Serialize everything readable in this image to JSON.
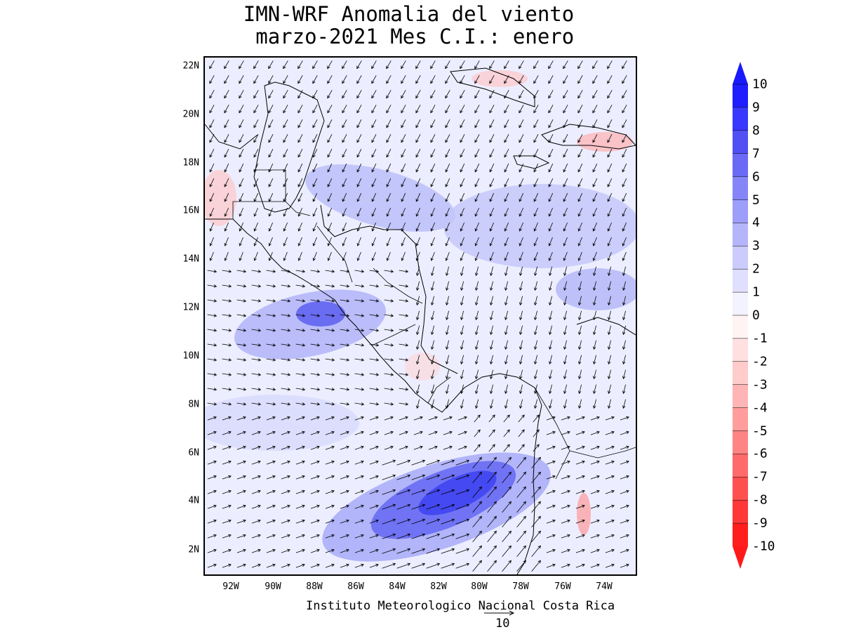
{
  "title": {
    "line1": "IMN-WRF Anomalia del viento",
    "line2": " marzo-2021 Mes C.I.: enero"
  },
  "credit": "Instituto Meteorologico Nacional Costa Rica",
  "reference_vector": {
    "label": "10",
    "magnitude": 10
  },
  "colors": {
    "negative_extreme": "#ff1a1a",
    "positive_extreme": "#1a1aff",
    "neutral": "#f2f2ff"
  },
  "map": {
    "lon_range": [
      -93.3,
      -72.3
    ],
    "lat_range": [
      1.0,
      22.5
    ],
    "lat_ticks": [
      "2N",
      "4N",
      "6N",
      "8N",
      "10N",
      "12N",
      "14N",
      "16N",
      "18N",
      "20N",
      "22N"
    ],
    "lon_ticks": [
      "92W",
      "90W",
      "88W",
      "86W",
      "84W",
      "82W",
      "80W",
      "78W",
      "76W",
      "74W"
    ],
    "variable": "wind speed anomaly (shaded) with wind anomaly vectors"
  },
  "colorbar": {
    "labels": [
      "10",
      "9",
      "8",
      "7",
      "6",
      "5",
      "4",
      "3",
      "2",
      "1",
      "0",
      "-1",
      "-2",
      "-3",
      "-4",
      "-5",
      "-6",
      "-7",
      "-8",
      "-9",
      "-10"
    ],
    "colors": [
      "#1e1eff",
      "#3838ff",
      "#5050f5",
      "#6a6af7",
      "#8585f8",
      "#9d9dfa",
      "#b5b5fb",
      "#cbcbfc",
      "#e0e0fe",
      "#f3f3ff",
      "#fff3f3",
      "#ffe0e0",
      "#ffcbcb",
      "#ffb5b5",
      "#ff9d9d",
      "#ff8585",
      "#ff6a6a",
      "#ff5050",
      "#ff3838",
      "#ff1e1e"
    ]
  }
}
